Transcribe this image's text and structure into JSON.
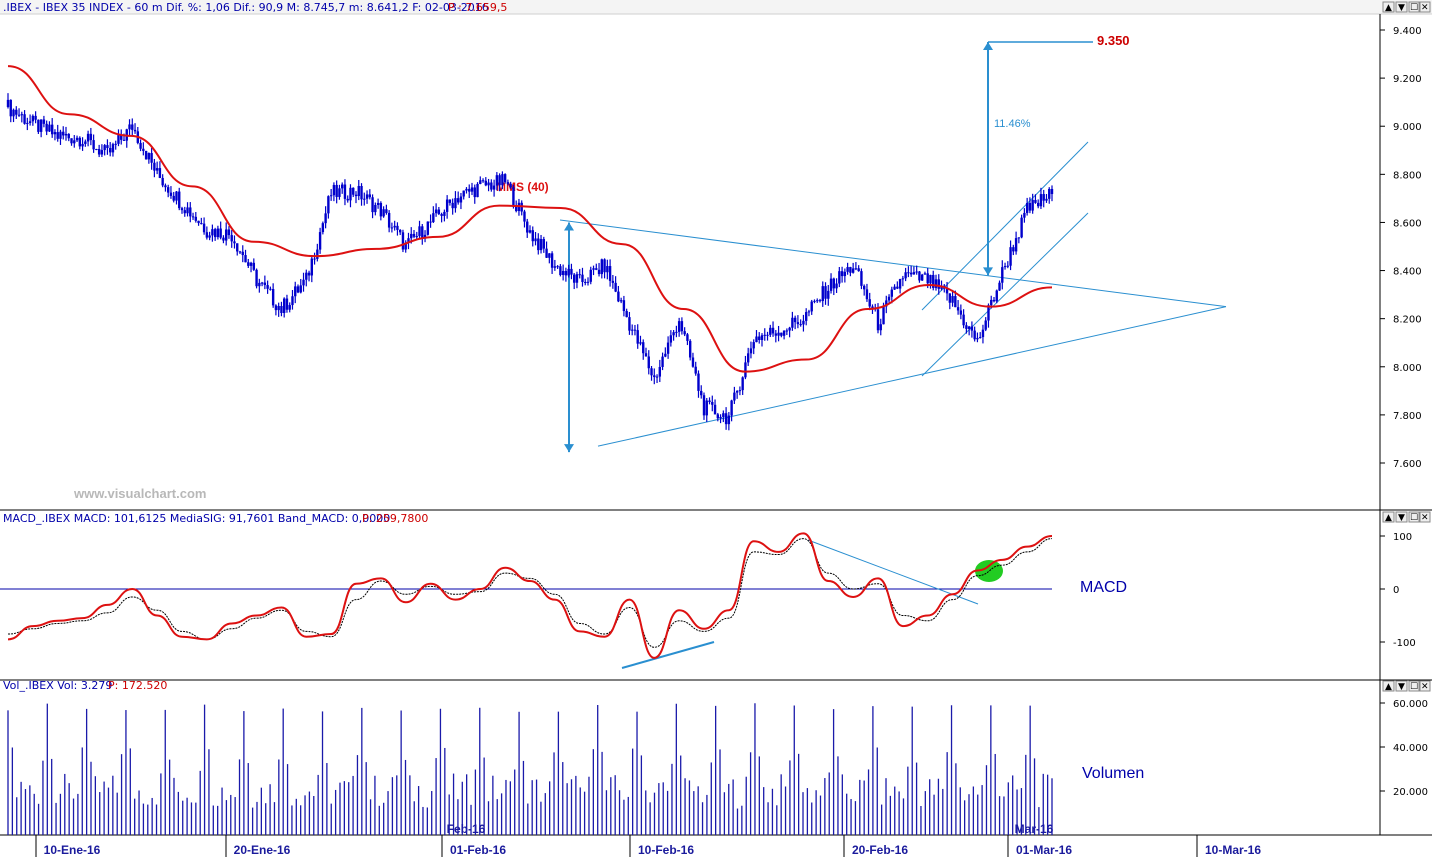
{
  "header": {
    "price_info": ".IBEX - IBEX 35 INDEX -  60 m  Dif. %: 1,06  Dif.: 90,9  M: 8.745,7  m: 8.641,2  F: 02-03-2016",
    "price_p": "P : 7.659,5",
    "macd_info": "MACD_.IBEX MACD: 101,6125  MediaSIG: 91,7601  Band_MACD: 0,0000",
    "macd_p": "P: 259,7800",
    "vol_info": "Vol_.IBEX Vol: 3.279",
    "vol_p": "P: 172.520"
  },
  "watermark": "www.visualchart.com",
  "window_controls": [
    "▲",
    "▼",
    "☐",
    "✕"
  ],
  "colors": {
    "candles": "#0000cc",
    "mms": "#dd1111",
    "trendline": "#2a8fd0",
    "macd": "#dd1111",
    "signal": "#000000",
    "zero_line": "#0000aa",
    "volume": "#1a1aaa",
    "highlight": "#22cc22",
    "target_label": "#cc0000"
  },
  "chart_data": [
    {
      "type": "candlestick",
      "title": "",
      "ylim": [
        7500,
        9500
      ],
      "yticks": [
        "7.600",
        "7.800",
        "8.000",
        "8.200",
        "8.400",
        "8.600",
        "8.800",
        "9.000",
        "9.200",
        "9.400"
      ],
      "ytick_values": [
        7600,
        7800,
        8000,
        8200,
        8400,
        8600,
        8800,
        9000,
        9200,
        9400
      ],
      "annotations": {
        "mms_label": "MMS (40)",
        "target": "9.350",
        "target_value": 9350,
        "pct": "11.46%",
        "triangle_apex_value": 8250,
        "triangle_upper_start_value": 8610,
        "triangle_lower_start_value": 7670,
        "measure_top_value": 8600,
        "measure_bottom_value": 7645,
        "breakout_measure_bottom_value": 8380
      },
      "series": [
        {
          "name": "price",
          "x": [
            "04-01",
            "05-01",
            "06-01",
            "07-01",
            "08-01",
            "11-01",
            "12-01",
            "13-01",
            "14-01",
            "15-01",
            "18-01",
            "19-01",
            "20-01",
            "21-01",
            "22-01",
            "25-01",
            "26-01",
            "27-01",
            "28-01",
            "29-01",
            "01-02",
            "02-02",
            "03-02",
            "04-02",
            "05-02",
            "08-02",
            "09-02",
            "10-02",
            "11-02",
            "12-02",
            "15-02",
            "16-02",
            "17-02",
            "18-02",
            "19-02",
            "22-02",
            "23-02",
            "24-02",
            "25-02",
            "26-02",
            "29-02",
            "01-03",
            "02-03"
          ],
          "close": [
            9080,
            9010,
            8960,
            8950,
            8880,
            9000,
            8800,
            8680,
            8570,
            8550,
            8360,
            8240,
            8360,
            8720,
            8730,
            8650,
            8500,
            8600,
            8700,
            8750,
            8770,
            8560,
            8420,
            8350,
            8420,
            8180,
            7950,
            8200,
            7830,
            7790,
            8120,
            8150,
            8200,
            8330,
            8420,
            8180,
            8380,
            8360,
            8270,
            8100,
            8390,
            8650,
            8720
          ]
        },
        {
          "name": "MMS (40)",
          "x": [
            "04-01",
            "07-01",
            "11-01",
            "14-01",
            "18-01",
            "21-01",
            "25-01",
            "28-01",
            "01-02",
            "04-02",
            "08-02",
            "11-02",
            "15-02",
            "18-02",
            "22-02",
            "25-02",
            "29-02",
            "01-03"
          ],
          "values": [
            9250,
            9050,
            8960,
            8750,
            8520,
            8460,
            8490,
            8540,
            8670,
            8660,
            8510,
            8240,
            7980,
            8030,
            8240,
            8340,
            8250,
            8330
          ]
        }
      ],
      "x_ticks": [
        "10-Ene-16",
        "20-Ene-16",
        "01-Feb-16",
        "10-Feb-16",
        "20-Feb-16",
        "01-Mar-16",
        "10-Mar-16"
      ],
      "month_labels": [
        "Feb-16",
        "Mar-16"
      ]
    },
    {
      "type": "line",
      "title": "MACD",
      "ylim": [
        -150,
        130
      ],
      "yticks": [
        "-100",
        "0",
        "100"
      ],
      "ytick_values": [
        -100,
        0,
        100
      ],
      "series": [
        {
          "name": "MACD",
          "values": [
            -95,
            -70,
            -60,
            -55,
            -30,
            0,
            -50,
            -90,
            -95,
            -65,
            -50,
            -35,
            -90,
            -85,
            10,
            20,
            -25,
            10,
            -20,
            0,
            40,
            15,
            -20,
            -80,
            -90,
            -20,
            -130,
            -40,
            -75,
            -40,
            90,
            70,
            105,
            15,
            -15,
            20,
            -70,
            -50,
            -10,
            35,
            55,
            80,
            100
          ]
        },
        {
          "name": "MediaSIG",
          "values": [
            -85,
            -75,
            -65,
            -60,
            -45,
            -15,
            -40,
            -80,
            -95,
            -75,
            -55,
            -40,
            -80,
            -90,
            -20,
            15,
            -10,
            5,
            -10,
            -5,
            30,
            20,
            -10,
            -65,
            -85,
            -35,
            -110,
            -60,
            -80,
            -55,
            70,
            65,
            95,
            30,
            0,
            10,
            -50,
            -60,
            -20,
            25,
            45,
            70,
            95
          ]
        }
      ],
      "annotations": {
        "zero_line_value": 0
      }
    },
    {
      "type": "bar",
      "title": "Volumen",
      "ylim": [
        0,
        68000
      ],
      "yticks": [
        "20.000",
        "40.000",
        "60.000"
      ],
      "ytick_values": [
        20000,
        40000,
        60000
      ]
    }
  ]
}
